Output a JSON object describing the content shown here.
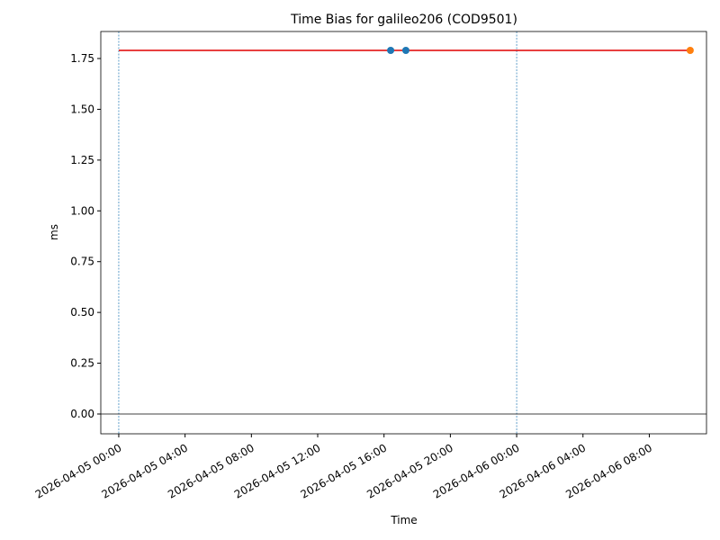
{
  "chart_data": {
    "type": "line",
    "title": "Time Bias for galileo206 (COD9501)",
    "x_label": "Time",
    "y_label": "ms",
    "xlim": [
      "2026-04-04 22:55",
      "2026-04-06 11:27"
    ],
    "xticks": [
      "2026-04-05 00:00",
      "2026-04-05 04:00",
      "2026-04-05 08:00",
      "2026-04-05 12:00",
      "2026-04-05 16:00",
      "2026-04-05 20:00",
      "2026-04-06 00:00",
      "2026-04-06 04:00",
      "2026-04-06 08:00"
    ],
    "ylim": [
      -0.0975,
      1.883
    ],
    "yticks": [
      {
        "value": 0,
        "label": "0.00"
      },
      {
        "value": 0.25,
        "label": "0.25"
      },
      {
        "value": 0.5,
        "label": "0.50"
      },
      {
        "value": 0.75,
        "label": "0.75"
      },
      {
        "value": 1,
        "label": "1.00"
      },
      {
        "value": 1.25,
        "label": "1.25"
      },
      {
        "value": 1.5,
        "label": "1.50"
      },
      {
        "value": 1.75,
        "label": "1.75"
      }
    ],
    "series": [
      {
        "style": "line",
        "color": "#e00000",
        "x": [
          "2026-04-05 00:00",
          "2026-04-06 10:28"
        ],
        "values": [
          1.79,
          1.79
        ]
      },
      {
        "style": "marker",
        "color": "#1f77b4",
        "x": [
          "2026-04-05 16:24",
          "2026-04-05 17:19"
        ],
        "values": [
          1.79,
          1.79
        ]
      },
      {
        "style": "marker",
        "color": "#ff7f0e",
        "x": [
          "2026-04-06 10:28"
        ],
        "values": [
          1.79
        ]
      }
    ],
    "vlines": [
      "2026-04-05 00:00",
      "2026-04-06 00:00"
    ],
    "vline_color": "#1f77b4",
    "hline": 0,
    "hline_color": "#000000"
  }
}
